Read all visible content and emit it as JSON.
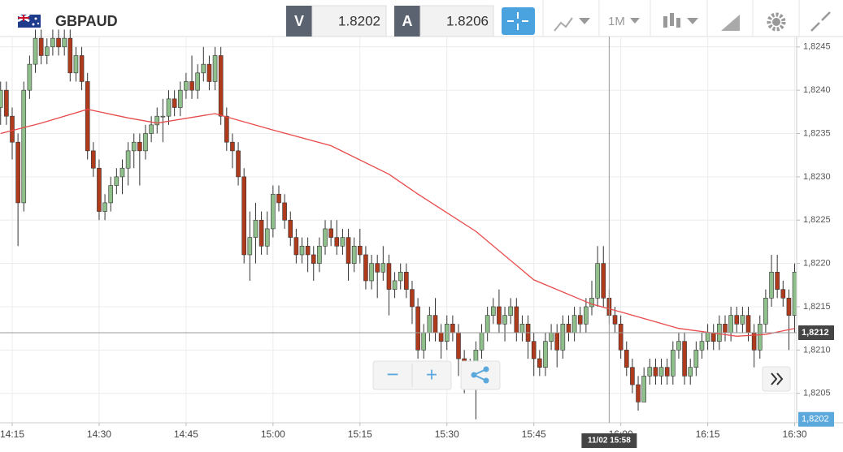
{
  "toolbar": {
    "symbol": "GBPAUD",
    "bid_label": "V",
    "bid": "1.8202",
    "ask_label": "A",
    "ask": "1.8206",
    "timeframe": "1M"
  },
  "zoom": {
    "minus": "−",
    "plus": "+"
  },
  "chart_data": {
    "type": "candlestick",
    "x": [
      "14:13",
      "14:14",
      "14:15",
      "14:16",
      "14:17",
      "14:18",
      "14:19",
      "14:20",
      "14:21",
      "14:22",
      "14:23",
      "14:24",
      "14:25",
      "14:26",
      "14:27",
      "14:28",
      "14:29",
      "14:30",
      "14:31",
      "14:32",
      "14:33",
      "14:34",
      "14:35",
      "14:36",
      "14:37",
      "14:38",
      "14:39",
      "14:40",
      "14:41",
      "14:42",
      "14:43",
      "14:44",
      "14:45",
      "14:46",
      "14:47",
      "14:48",
      "14:49",
      "14:50",
      "14:51",
      "14:52",
      "14:53",
      "14:54",
      "14:55",
      "14:56",
      "14:57",
      "14:58",
      "14:59",
      "15:00",
      "15:01",
      "15:02",
      "15:03",
      "15:04",
      "15:05",
      "15:06",
      "15:07",
      "15:08",
      "15:09",
      "15:10",
      "15:11",
      "15:12",
      "15:13",
      "15:14",
      "15:15",
      "15:16",
      "15:17",
      "15:18",
      "15:19",
      "15:20",
      "15:21",
      "15:22",
      "15:23",
      "15:24",
      "15:25",
      "15:26",
      "15:27",
      "15:28",
      "15:29",
      "15:30",
      "15:31",
      "15:32",
      "15:33",
      "15:34",
      "15:35",
      "15:36",
      "15:37",
      "15:38",
      "15:39",
      "15:40",
      "15:41",
      "15:42",
      "15:43",
      "15:44",
      "15:45",
      "15:46",
      "15:47",
      "15:48",
      "15:49",
      "15:50",
      "15:51",
      "15:52",
      "15:53",
      "15:54",
      "15:55",
      "15:56",
      "15:57",
      "15:58",
      "15:59",
      "16:00",
      "16:01",
      "16:02",
      "16:03",
      "16:04",
      "16:05",
      "16:06",
      "16:07",
      "16:08",
      "16:09",
      "16:10",
      "16:11",
      "16:12",
      "16:13",
      "16:14",
      "16:15",
      "16:16",
      "16:17",
      "16:18",
      "16:19",
      "16:20",
      "16:21",
      "16:22",
      "16:23",
      "16:24",
      "16:25",
      "16:26",
      "16:27",
      "16:28",
      "16:29",
      "16:30"
    ],
    "candles": [
      [
        1.8238,
        1.8241,
        1.8236,
        1.824
      ],
      [
        1.824,
        1.8241,
        1.8236,
        1.8237
      ],
      [
        1.8237,
        1.8238,
        1.8232,
        1.8234
      ],
      [
        1.8234,
        1.8235,
        1.8222,
        1.8227
      ],
      [
        1.8227,
        1.8241,
        1.8226,
        1.824
      ],
      [
        1.824,
        1.8244,
        1.8239,
        1.8243
      ],
      [
        1.8243,
        1.8247,
        1.8242,
        1.8246
      ],
      [
        1.8246,
        1.8247,
        1.8243,
        1.8244
      ],
      [
        1.8244,
        1.8246,
        1.8243,
        1.8245
      ],
      [
        1.8245,
        1.8247,
        1.8244,
        1.8246
      ],
      [
        1.8246,
        1.8247,
        1.8244,
        1.8245
      ],
      [
        1.8245,
        1.8247,
        1.8244,
        1.8246
      ],
      [
        1.8246,
        1.8247,
        1.8241,
        1.8242
      ],
      [
        1.8242,
        1.8245,
        1.8241,
        1.8244
      ],
      [
        1.8244,
        1.8245,
        1.824,
        1.8241
      ],
      [
        1.8241,
        1.8242,
        1.8232,
        1.8233
      ],
      [
        1.8233,
        1.8234,
        1.823,
        1.8231
      ],
      [
        1.8231,
        1.8232,
        1.8225,
        1.8226
      ],
      [
        1.8226,
        1.8228,
        1.8225,
        1.8227
      ],
      [
        1.8227,
        1.823,
        1.8226,
        1.8229
      ],
      [
        1.8229,
        1.8231,
        1.8228,
        1.823
      ],
      [
        1.823,
        1.8232,
        1.8228,
        1.8231
      ],
      [
        1.8231,
        1.8234,
        1.8229,
        1.8233
      ],
      [
        1.8233,
        1.8235,
        1.8231,
        1.8234
      ],
      [
        1.8234,
        1.8235,
        1.8229,
        1.8233
      ],
      [
        1.8233,
        1.8236,
        1.8232,
        1.8235
      ],
      [
        1.8235,
        1.8237,
        1.8234,
        1.8236
      ],
      [
        1.8236,
        1.8238,
        1.8235,
        1.8237
      ],
      [
        1.8237,
        1.8239,
        1.8234,
        1.8237
      ],
      [
        1.8237,
        1.824,
        1.8236,
        1.8239
      ],
      [
        1.8239,
        1.824,
        1.8237,
        1.8238
      ],
      [
        1.8238,
        1.8241,
        1.8237,
        1.824
      ],
      [
        1.824,
        1.8242,
        1.8239,
        1.8241
      ],
      [
        1.8241,
        1.8244,
        1.8239,
        1.824
      ],
      [
        1.824,
        1.8243,
        1.8239,
        1.8242
      ],
      [
        1.8242,
        1.8245,
        1.8241,
        1.8243
      ],
      [
        1.8243,
        1.8244,
        1.824,
        1.8241
      ],
      [
        1.8241,
        1.8245,
        1.824,
        1.8244
      ],
      [
        1.8244,
        1.8245,
        1.8236,
        1.8237
      ],
      [
        1.8237,
        1.8238,
        1.8233,
        1.8234
      ],
      [
        1.8234,
        1.8235,
        1.8231,
        1.8233
      ],
      [
        1.8233,
        1.8234,
        1.8229,
        1.823
      ],
      [
        1.823,
        1.8231,
        1.822,
        1.8221
      ],
      [
        1.8221,
        1.8226,
        1.8218,
        1.8223
      ],
      [
        1.8223,
        1.8227,
        1.822,
        1.8225
      ],
      [
        1.8225,
        1.8226,
        1.8221,
        1.8222
      ],
      [
        1.8222,
        1.8226,
        1.8221,
        1.8224
      ],
      [
        1.8224,
        1.8229,
        1.8223,
        1.8228
      ],
      [
        1.8228,
        1.8229,
        1.8226,
        1.8227
      ],
      [
        1.8227,
        1.8228,
        1.8224,
        1.8225
      ],
      [
        1.8225,
        1.8226,
        1.8222,
        1.8223
      ],
      [
        1.8223,
        1.8224,
        1.822,
        1.8221
      ],
      [
        1.8221,
        1.8223,
        1.822,
        1.8222
      ],
      [
        1.8222,
        1.8223,
        1.8219,
        1.8221
      ],
      [
        1.8221,
        1.8222,
        1.8218,
        1.822
      ],
      [
        1.822,
        1.8223,
        1.8219,
        1.8222
      ],
      [
        1.8222,
        1.8225,
        1.8221,
        1.8224
      ],
      [
        1.8224,
        1.8225,
        1.8222,
        1.8223
      ],
      [
        1.8223,
        1.8225,
        1.8221,
        1.8222
      ],
      [
        1.8222,
        1.8224,
        1.8221,
        1.8223
      ],
      [
        1.8223,
        1.8224,
        1.8218,
        1.822
      ],
      [
        1.822,
        1.8223,
        1.8219,
        1.8222
      ],
      [
        1.8222,
        1.8224,
        1.822,
        1.8221
      ],
      [
        1.8221,
        1.8222,
        1.8217,
        1.8218
      ],
      [
        1.8218,
        1.8221,
        1.8217,
        1.822
      ],
      [
        1.822,
        1.8221,
        1.8216,
        1.8219
      ],
      [
        1.8219,
        1.8222,
        1.8218,
        1.822
      ],
      [
        1.822,
        1.8221,
        1.8214,
        1.8217
      ],
      [
        1.8217,
        1.8219,
        1.8216,
        1.8218
      ],
      [
        1.8218,
        1.822,
        1.8217,
        1.8219
      ],
      [
        1.8219,
        1.822,
        1.8216,
        1.8217
      ],
      [
        1.8217,
        1.8218,
        1.8213,
        1.8215
      ],
      [
        1.8215,
        1.8216,
        1.8209,
        1.821
      ],
      [
        1.821,
        1.8213,
        1.8209,
        1.8212
      ],
      [
        1.8212,
        1.8215,
        1.8211,
        1.8214
      ],
      [
        1.8214,
        1.8216,
        1.8211,
        1.8212
      ],
      [
        1.8212,
        1.8213,
        1.8209,
        1.8211
      ],
      [
        1.8211,
        1.8214,
        1.821,
        1.8213
      ],
      [
        1.8213,
        1.8214,
        1.8211,
        1.8212
      ],
      [
        1.8212,
        1.8213,
        1.8207,
        1.8209
      ],
      [
        1.8209,
        1.821,
        1.8205,
        1.8207
      ],
      [
        1.8207,
        1.8209,
        1.8206,
        1.8208
      ],
      [
        1.8208,
        1.8211,
        1.8202,
        1.821
      ],
      [
        1.821,
        1.8213,
        1.8209,
        1.8212
      ],
      [
        1.8212,
        1.8215,
        1.8211,
        1.8214
      ],
      [
        1.8214,
        1.8216,
        1.8213,
        1.8215
      ],
      [
        1.8215,
        1.8217,
        1.8212,
        1.8213
      ],
      [
        1.8213,
        1.8215,
        1.8211,
        1.8214
      ],
      [
        1.8214,
        1.8216,
        1.8213,
        1.8215
      ],
      [
        1.8215,
        1.8216,
        1.8211,
        1.8212
      ],
      [
        1.8212,
        1.8214,
        1.8211,
        1.8213
      ],
      [
        1.8213,
        1.8214,
        1.8209,
        1.8211
      ],
      [
        1.8211,
        1.8212,
        1.8207,
        1.8209
      ],
      [
        1.8209,
        1.821,
        1.8207,
        1.8208
      ],
      [
        1.8208,
        1.8212,
        1.8207,
        1.8211
      ],
      [
        1.8211,
        1.8213,
        1.821,
        1.8212
      ],
      [
        1.8212,
        1.8213,
        1.8208,
        1.821
      ],
      [
        1.821,
        1.8214,
        1.8209,
        1.8213
      ],
      [
        1.8213,
        1.8214,
        1.8211,
        1.8212
      ],
      [
        1.8212,
        1.8215,
        1.8211,
        1.8214
      ],
      [
        1.8214,
        1.8215,
        1.8212,
        1.8213
      ],
      [
        1.8213,
        1.8216,
        1.8212,
        1.8215
      ],
      [
        1.8215,
        1.8218,
        1.8214,
        1.8216
      ],
      [
        1.8216,
        1.8222,
        1.8215,
        1.822
      ],
      [
        1.822,
        1.8222,
        1.8215,
        1.8216
      ],
      [
        1.8216,
        1.8217,
        1.8213,
        1.8214
      ],
      [
        1.8214,
        1.8215,
        1.8212,
        1.8213
      ],
      [
        1.8213,
        1.8214,
        1.8209,
        1.821
      ],
      [
        1.821,
        1.8211,
        1.8207,
        1.8208
      ],
      [
        1.8208,
        1.8209,
        1.8205,
        1.8206
      ],
      [
        1.8206,
        1.8207,
        1.8203,
        1.8204
      ],
      [
        1.8204,
        1.8208,
        1.8204,
        1.8207
      ],
      [
        1.8207,
        1.8209,
        1.8206,
        1.8208
      ],
      [
        1.8208,
        1.8209,
        1.8206,
        1.8207
      ],
      [
        1.8207,
        1.8209,
        1.8206,
        1.8208
      ],
      [
        1.8208,
        1.8209,
        1.8206,
        1.8207
      ],
      [
        1.8207,
        1.8211,
        1.8206,
        1.821
      ],
      [
        1.821,
        1.8212,
        1.8209,
        1.8211
      ],
      [
        1.8211,
        1.8212,
        1.8206,
        1.8207
      ],
      [
        1.8207,
        1.8209,
        1.8206,
        1.8208
      ],
      [
        1.8208,
        1.8211,
        1.8207,
        1.821
      ],
      [
        1.821,
        1.8212,
        1.8209,
        1.8211
      ],
      [
        1.8211,
        1.8213,
        1.821,
        1.8212
      ],
      [
        1.8212,
        1.8213,
        1.821,
        1.8211
      ],
      [
        1.8211,
        1.8214,
        1.821,
        1.8213
      ],
      [
        1.8213,
        1.8214,
        1.8211,
        1.8212
      ],
      [
        1.8212,
        1.8215,
        1.8211,
        1.8214
      ],
      [
        1.8214,
        1.8215,
        1.8212,
        1.8213
      ],
      [
        1.8213,
        1.8215,
        1.8212,
        1.8214
      ],
      [
        1.8214,
        1.8215,
        1.8211,
        1.8212
      ],
      [
        1.8212,
        1.8213,
        1.8208,
        1.821
      ],
      [
        1.821,
        1.8214,
        1.8209,
        1.8213
      ],
      [
        1.8213,
        1.8217,
        1.8212,
        1.8216
      ],
      [
        1.8216,
        1.8221,
        1.8215,
        1.8219
      ],
      [
        1.8219,
        1.8221,
        1.8216,
        1.8217
      ],
      [
        1.8217,
        1.8218,
        1.8215,
        1.8216
      ],
      [
        1.8216,
        1.8217,
        1.821,
        1.8214
      ],
      [
        1.8214,
        1.822,
        1.8212,
        1.8219
      ]
    ],
    "up_color": "#8fbf8a",
    "down_color": "#b03a1c",
    "ma": {
      "color": "#e84a4a",
      "x": [
        "14:13",
        "14:20",
        "14:28",
        "14:35",
        "14:40",
        "14:50",
        "15:00",
        "15:10",
        "15:20",
        "15:25",
        "15:35",
        "15:45",
        "15:55",
        "16:00",
        "16:10",
        "16:20",
        "16:25",
        "16:30"
      ],
      "values": [
        1.8235,
        1.82362,
        1.82378,
        1.82368,
        1.82362,
        1.82373,
        1.82354,
        1.82336,
        1.82303,
        1.8228,
        1.82237,
        1.82181,
        1.82153,
        1.82144,
        1.82125,
        1.82116,
        1.82118,
        1.82125
      ]
    },
    "ylim": [
      1.82016,
      1.82462
    ],
    "yticks": [
      {
        "value": 1.8205,
        "label": "1,8205"
      },
      {
        "value": 1.821,
        "label": "1,8210"
      },
      {
        "value": 1.8215,
        "label": "1,8215"
      },
      {
        "value": 1.822,
        "label": "1,8220"
      },
      {
        "value": 1.8225,
        "label": "1,8225"
      },
      {
        "value": 1.823,
        "label": "1,8230"
      },
      {
        "value": 1.8235,
        "label": "1,8235"
      },
      {
        "value": 1.824,
        "label": "1,8240"
      },
      {
        "value": 1.8245,
        "label": "1,8245"
      }
    ],
    "xticks": [
      "14:15",
      "14:30",
      "14:45",
      "15:00",
      "15:15",
      "15:30",
      "15:45",
      "16:00",
      "16:15",
      "16:30"
    ],
    "grid": true,
    "crosshair": {
      "time": "11/02 15:58",
      "price": {
        "value": 1.8212,
        "label": "1,8212"
      }
    },
    "low_marker": {
      "value": 1.8202,
      "label": "1,8202"
    }
  }
}
